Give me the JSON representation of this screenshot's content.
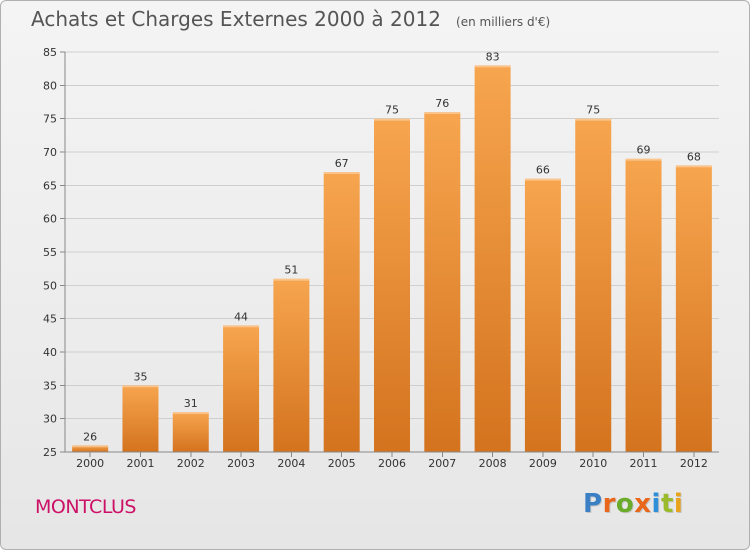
{
  "header": {
    "title": "Achats et Charges Externes 2000 à 2012",
    "subtitle": "(en milliers d'€)"
  },
  "footer": {
    "commune": "MONTCLUS",
    "logo_text": "Proxiti"
  },
  "colors": {
    "bar_top": "#f7a54f",
    "bar_bottom": "#d4731e",
    "commune": "#cc1166",
    "logo": [
      "#3b7fc4",
      "#e8671b",
      "#6aab2a",
      "#e8671b",
      "#2f8fd8",
      "#9bbb2c",
      "#e8a21b"
    ]
  },
  "chart_data": {
    "type": "bar",
    "categories": [
      "2000",
      "2001",
      "2002",
      "2003",
      "2004",
      "2005",
      "2006",
      "2007",
      "2008",
      "2009",
      "2010",
      "2011",
      "2012"
    ],
    "values": [
      26,
      35,
      31,
      44,
      51,
      67,
      75,
      76,
      83,
      66,
      75,
      69,
      68
    ],
    "ylim": [
      25,
      85
    ],
    "yticks": [
      25,
      30,
      35,
      40,
      45,
      50,
      55,
      60,
      65,
      70,
      75,
      80,
      85
    ],
    "grid": true,
    "data_labels": true
  }
}
